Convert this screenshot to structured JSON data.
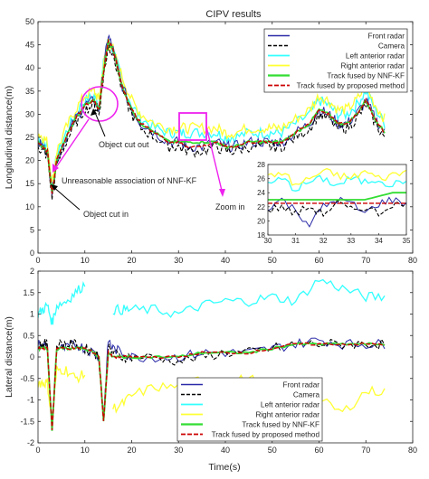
{
  "figure": {
    "title": "CIPV results",
    "xlabel": "Time(s)"
  },
  "colors": {
    "front_radar": "#2a2aa8",
    "camera": "#000000",
    "left_anterior_radar": "#33ffff",
    "right_anterior_radar": "#ffff33",
    "nnf_kf": "#33dd33",
    "proposed": "#cc0000",
    "annotation": "#ee22ee",
    "inset_box": "#ee22ee"
  },
  "annotations": {
    "object_cut_out": "Object cut out",
    "unreasonable": "Unreasonable association of NNF-KF",
    "object_cut_in": "Object cut in",
    "zoom_in": "Zoom in"
  },
  "chart_data": [
    {
      "type": "line",
      "title": "CIPV results",
      "xlabel": "",
      "ylabel": "Longitudinal distance(m)",
      "xlim": [
        0,
        80
      ],
      "ylim": [
        0,
        50
      ],
      "xticks": [
        0,
        10,
        20,
        30,
        40,
        50,
        60,
        70,
        80
      ],
      "yticks": [
        0,
        5,
        10,
        15,
        20,
        25,
        30,
        35,
        40,
        45,
        50
      ],
      "grid": false,
      "legend_position": "top-right",
      "x": [
        0,
        1,
        2,
        3,
        4,
        6,
        8,
        10,
        12,
        13,
        14,
        15,
        16,
        18,
        20,
        22,
        25,
        28,
        30,
        32,
        35,
        38,
        40,
        42,
        45,
        48,
        50,
        52,
        55,
        58,
        60,
        62,
        64,
        66,
        68,
        70,
        72,
        74
      ],
      "series": [
        {
          "name": "Front radar",
          "values": [
            24,
            23,
            22,
            13,
            20,
            25,
            29,
            32,
            33,
            31,
            40,
            47,
            44,
            36,
            31,
            28,
            26,
            24,
            24,
            23,
            23,
            24,
            23,
            23,
            24,
            24,
            24,
            24,
            26,
            28,
            31,
            30,
            28,
            28,
            30,
            33,
            29,
            26
          ]
        },
        {
          "name": "Camera",
          "values": [
            23,
            22,
            21,
            12,
            19,
            24,
            28,
            31,
            32,
            30,
            38,
            45,
            43,
            35,
            30,
            27,
            25,
            23,
            23,
            22,
            22,
            23,
            22,
            22,
            23,
            23,
            23,
            23,
            25,
            27,
            30,
            29,
            27,
            27,
            29,
            32,
            28,
            25
          ]
        },
        {
          "name": "Left anterior radar",
          "values": [
            25,
            24,
            23,
            14,
            21,
            26,
            30,
            33,
            34,
            32,
            41,
            46,
            44,
            37,
            32,
            29,
            27,
            26,
            26,
            26,
            26,
            26,
            25,
            25,
            26,
            26,
            26,
            26,
            28,
            30,
            33,
            32,
            30,
            30,
            32,
            35,
            31,
            28
          ]
        },
        {
          "name": "Right anterior radar",
          "values": [
            26,
            25,
            24,
            15,
            22,
            27,
            31,
            34,
            35,
            33,
            41,
            45,
            44,
            38,
            33,
            30,
            28,
            27,
            27,
            27,
            27,
            27,
            26,
            26,
            27,
            27,
            27,
            27,
            29,
            31,
            34,
            33,
            31,
            31,
            33,
            36,
            32,
            29
          ]
        },
        {
          "name": "Track fused by NNF-KF",
          "values": [
            24,
            23,
            22,
            13,
            20,
            25,
            29,
            32,
            33,
            31,
            39,
            46,
            44,
            36,
            31,
            28,
            26,
            24,
            24,
            24,
            24,
            24,
            23,
            23,
            24,
            24,
            24,
            24,
            26,
            28,
            31,
            30,
            28,
            28,
            30,
            33,
            29,
            26
          ]
        },
        {
          "name": "Track fused by proposed method",
          "values": [
            24,
            23,
            22,
            13,
            20,
            25,
            29,
            32,
            33,
            31,
            39,
            46,
            44,
            36,
            31,
            28,
            26,
            24,
            24,
            23,
            23,
            24,
            23,
            23,
            24,
            24,
            24,
            24,
            26,
            28,
            31,
            30,
            28,
            28,
            30,
            33,
            29,
            26
          ]
        }
      ],
      "inset": {
        "xlim": [
          30,
          35
        ],
        "ylim": [
          18,
          28
        ],
        "xticks": [
          30,
          31,
          32,
          33,
          34,
          35
        ],
        "yticks": [
          18,
          20,
          22,
          24,
          26,
          28
        ],
        "x": [
          30,
          30.5,
          31,
          31.5,
          32,
          32.5,
          33,
          33.5,
          34,
          34.5,
          35
        ],
        "series": [
          {
            "name": "Front radar",
            "values": [
              22,
              23,
              21.5,
              19.5,
              22,
              23,
              22.5,
              21,
              22.5,
              23,
              22.5
            ]
          },
          {
            "name": "Camera",
            "values": [
              21.5,
              22,
              21,
              22,
              21,
              22.5,
              21.5,
              22,
              21,
              22.5,
              22
            ]
          },
          {
            "name": "Left anterior radar",
            "values": [
              25,
              26,
              24.5,
              25.5,
              26,
              25,
              26,
              25.5,
              26,
              25,
              26
            ]
          },
          {
            "name": "Right anterior radar",
            "values": [
              26,
              27,
              25,
              26,
              27,
              26.5,
              26,
              27,
              26,
              26.5,
              27
            ]
          },
          {
            "name": "Track fused by NNF-KF",
            "values": [
              23,
              23,
              23,
              23,
              23,
              23,
              23,
              23,
              23.5,
              24,
              24
            ]
          },
          {
            "name": "Track fused by proposed method",
            "values": [
              22.5,
              22.5,
              22.5,
              22.5,
              22.5,
              22.5,
              22.5,
              22.5,
              22.5,
              22.5,
              22.5
            ]
          }
        ]
      }
    },
    {
      "type": "line",
      "title": "",
      "xlabel": "Time(s)",
      "ylabel": "Lateral distance(m)",
      "xlim": [
        0,
        80
      ],
      "ylim": [
        -2,
        2
      ],
      "xticks": [
        0,
        10,
        20,
        30,
        40,
        50,
        60,
        70,
        80
      ],
      "yticks": [
        -2,
        -1.5,
        -1,
        -0.5,
        0,
        0.5,
        1,
        1.5,
        2
      ],
      "grid": false,
      "legend_position": "bottom-center",
      "x": [
        0,
        1,
        2,
        3,
        4,
        6,
        8,
        10,
        12,
        13,
        14,
        15,
        16,
        18,
        20,
        25,
        30,
        35,
        40,
        45,
        50,
        55,
        60,
        65,
        70,
        74
      ],
      "series": [
        {
          "name": "Front radar",
          "values": [
            0.3,
            0.3,
            0.2,
            -1.6,
            0.2,
            0.2,
            0.3,
            0.2,
            0.1,
            0.0,
            -1.4,
            0.4,
            0.2,
            0.1,
            0.0,
            0.0,
            0.0,
            0.1,
            0.1,
            0.1,
            0.2,
            0.3,
            0.4,
            0.3,
            0.3,
            0.3
          ]
        },
        {
          "name": "Camera",
          "values": [
            0.3,
            0.3,
            0.3,
            -1.7,
            0.3,
            0.3,
            0.3,
            0.2,
            0.1,
            0.0,
            -1.5,
            0.2,
            0.1,
            0.0,
            0.0,
            0.0,
            -0.1,
            0.0,
            0.1,
            0.1,
            0.2,
            0.3,
            0.3,
            0.3,
            0.3,
            0.3
          ]
        },
        {
          "name": "Left anterior radar",
          "values": [
            1.0,
            1.1,
            1.2,
            0.8,
            1.2,
            1.3,
            1.5,
            1.7,
            null,
            null,
            null,
            null,
            1.1,
            1.1,
            1.1,
            1.1,
            1.0,
            1.2,
            1.3,
            1.3,
            1.4,
            1.3,
            1.8,
            1.6,
            1.4,
            1.4
          ]
        },
        {
          "name": "Right anterior radar",
          "values": [
            -0.6,
            -0.6,
            -0.6,
            -1.5,
            -0.3,
            -0.3,
            -0.5,
            -0.4,
            null,
            null,
            null,
            null,
            -1.2,
            -1.1,
            -0.9,
            -0.7,
            -0.7,
            -0.5,
            -0.6,
            -0.5,
            -0.7,
            -0.8,
            -1.0,
            -1.3,
            -0.8,
            -0.8
          ]
        },
        {
          "name": "Track fused by NNF-KF",
          "values": [
            0.2,
            0.2,
            0.2,
            -1.7,
            0.2,
            0.2,
            0.2,
            0.2,
            0.1,
            0.0,
            -1.5,
            0.1,
            0.0,
            0.0,
            0.0,
            0.0,
            0.0,
            0.1,
            0.1,
            0.1,
            0.2,
            0.3,
            0.3,
            0.3,
            0.3,
            0.3
          ]
        },
        {
          "name": "Track fused by proposed method",
          "values": [
            0.2,
            0.2,
            0.2,
            -1.7,
            0.2,
            0.2,
            0.2,
            0.2,
            0.1,
            0.0,
            -1.5,
            0.1,
            0.0,
            0.0,
            0.0,
            0.0,
            0.0,
            0.1,
            0.1,
            0.1,
            0.2,
            0.3,
            0.3,
            0.3,
            0.3,
            0.3
          ]
        }
      ]
    }
  ]
}
